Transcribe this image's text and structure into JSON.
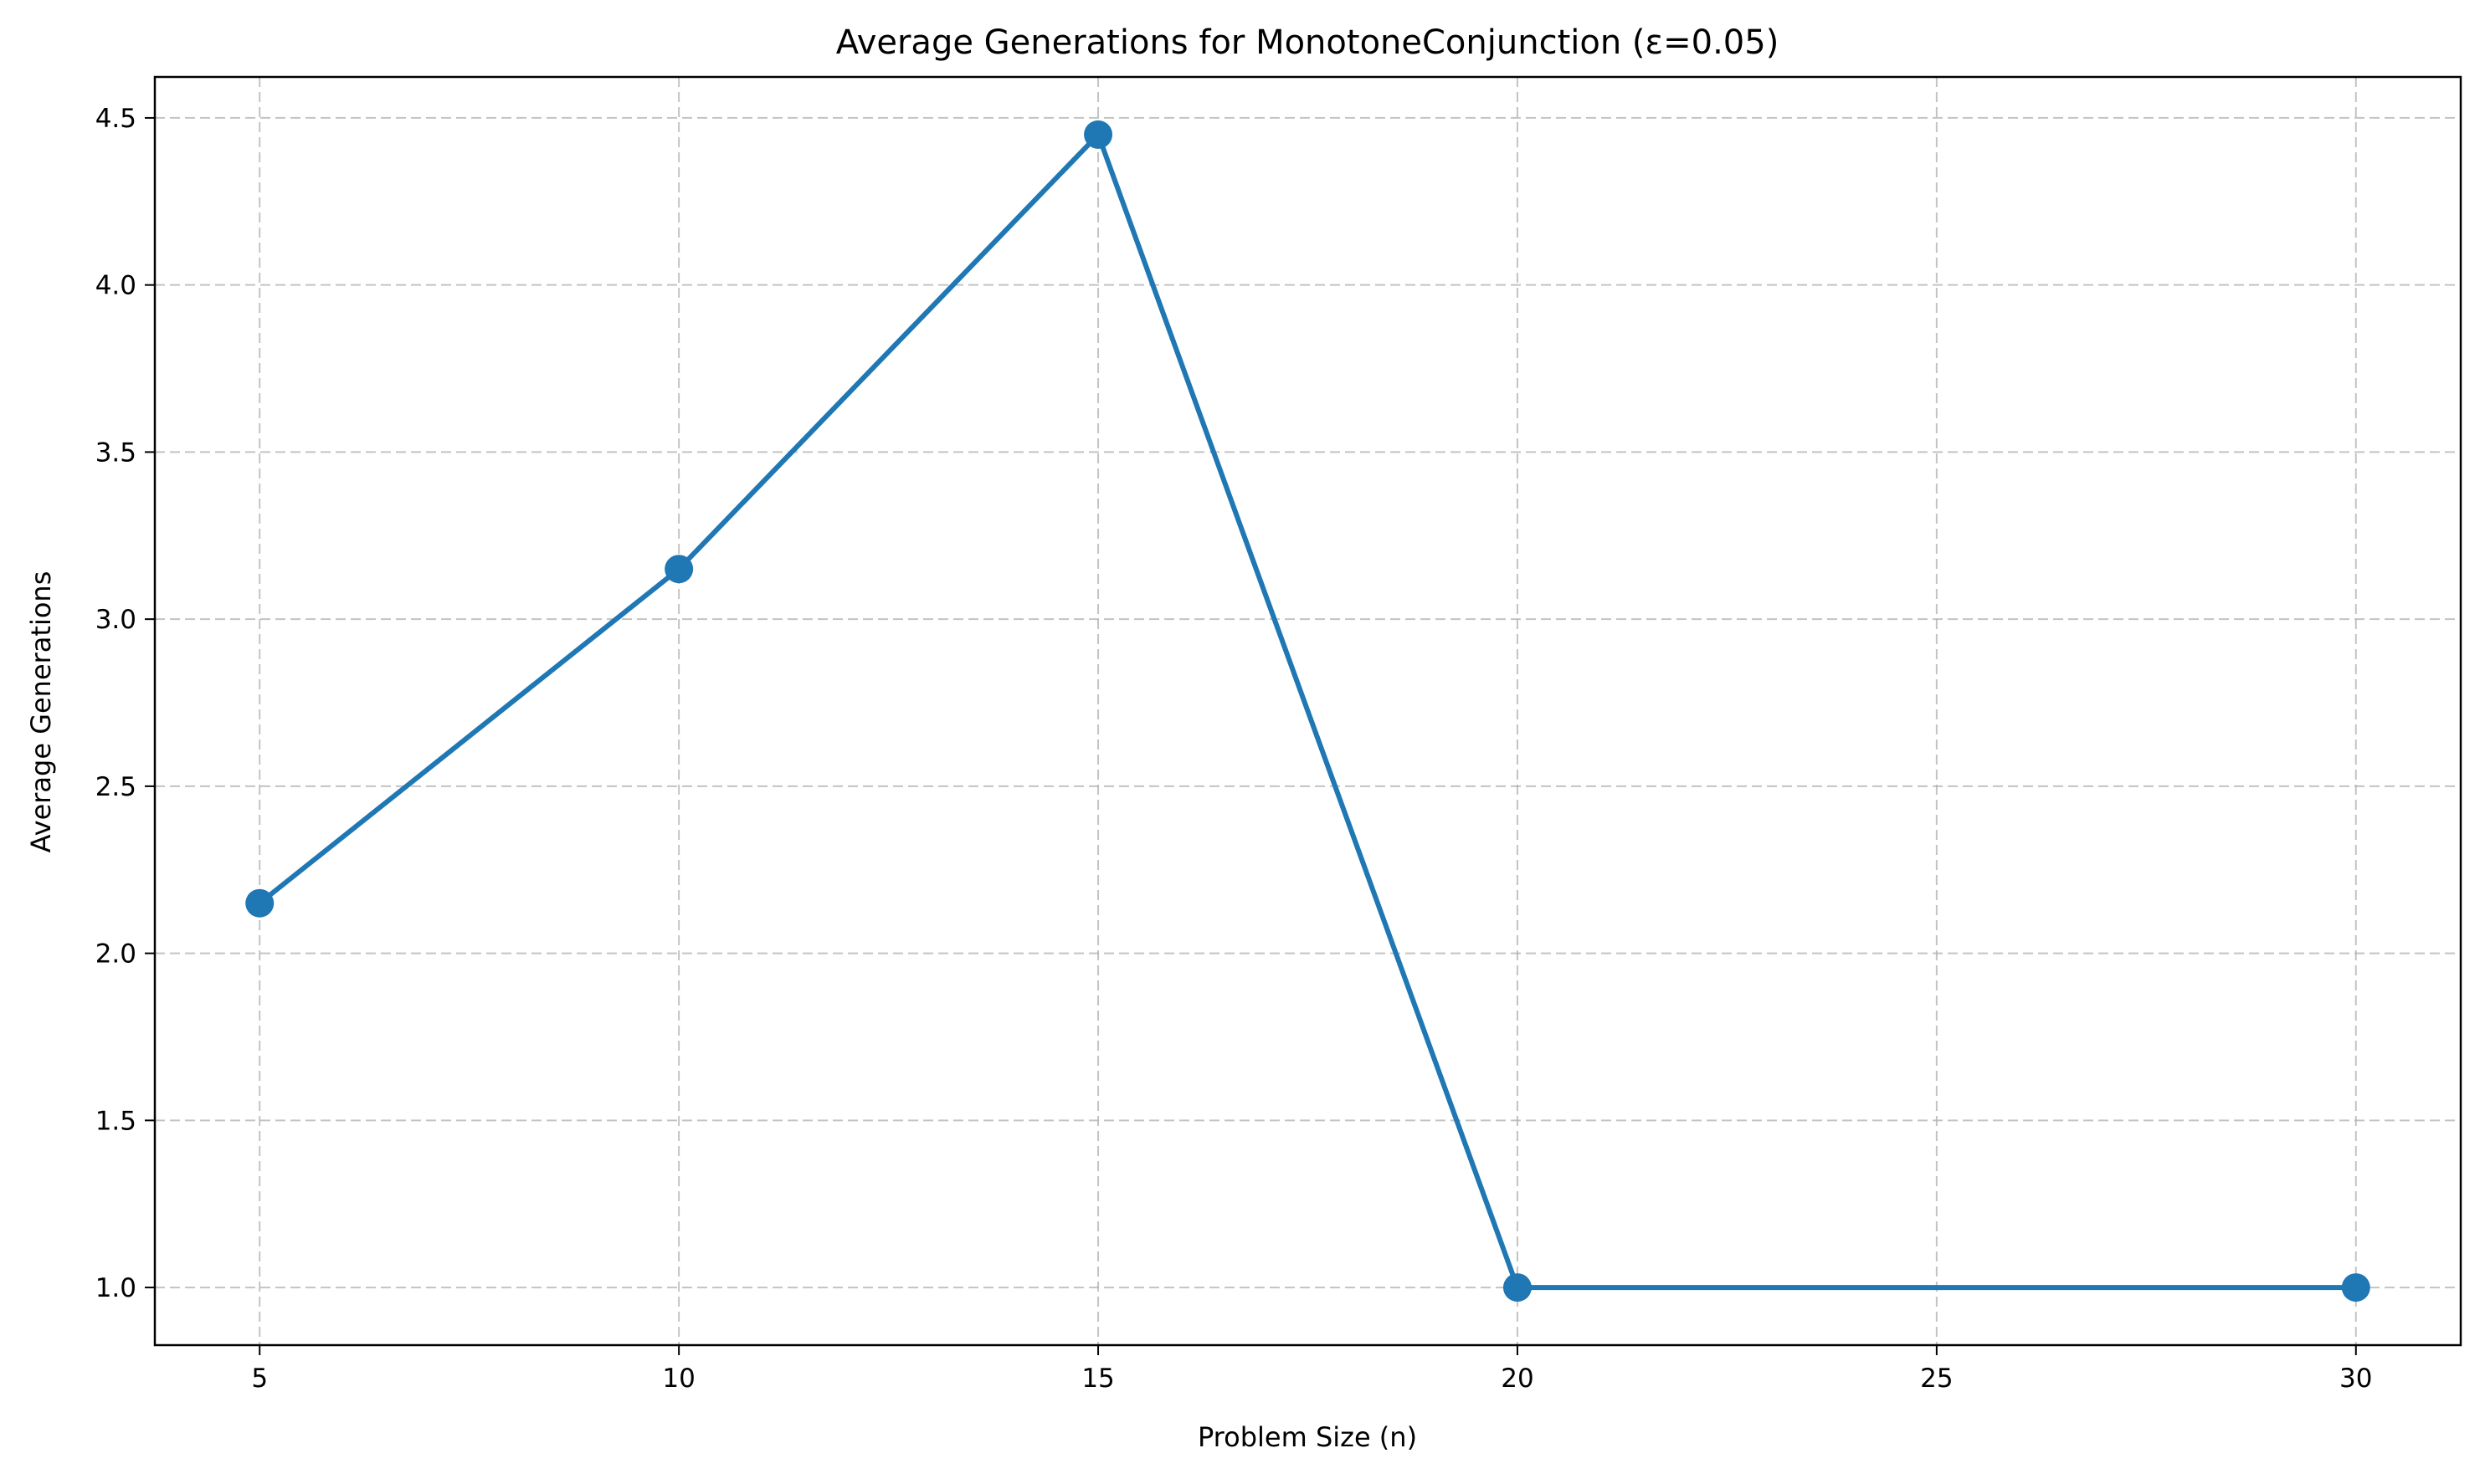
{
  "chart_data": {
    "type": "line",
    "title": "Average Generations for MonotoneConjunction (ε=0.05)",
    "xlabel": "Problem Size (n)",
    "ylabel": "Average Generations",
    "x": [
      5,
      10,
      15,
      20,
      30
    ],
    "series": [
      {
        "values": [
          2.15,
          3.15,
          4.45,
          1.0,
          1.0
        ],
        "color": "#1f77b4",
        "marker": "circle"
      }
    ],
    "xticks": [
      5,
      10,
      15,
      20,
      25,
      30
    ],
    "xtick_labels": [
      "5",
      "10",
      "15",
      "20",
      "25",
      "30"
    ],
    "yticks": [
      1.0,
      1.5,
      2.0,
      2.5,
      3.0,
      3.5,
      4.0,
      4.5
    ],
    "ytick_labels": [
      "1.0",
      "1.5",
      "2.0",
      "2.5",
      "3.0",
      "3.5",
      "4.0",
      "4.5"
    ],
    "xlim": [
      3.75,
      31.25
    ],
    "ylim": [
      0.8275,
      4.6225
    ],
    "grid": true,
    "grid_style": "dashed",
    "grid_color": "#b0b0b0"
  }
}
